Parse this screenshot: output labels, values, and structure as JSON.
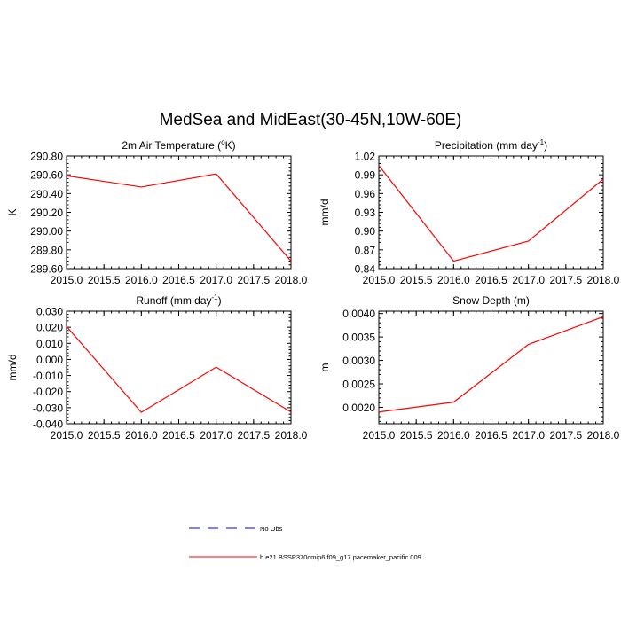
{
  "figure_title": "MedSea and MidEast(30-45N,10W-60E)",
  "line_color": "#ff0000",
  "obs_color": "#0000ff",
  "legend": [
    {
      "label": "No Obs",
      "style": "dashed",
      "color": "#0000ff"
    },
    {
      "label": "b.e21.BSSP370cmip6.f09_g17.pacemaker_pacific.009",
      "style": "solid",
      "color": "#ff0000"
    }
  ],
  "chart_data": [
    {
      "type": "line",
      "title": "2m Air Temperature (",
      "title_sup": "o",
      "title_tail": "K)",
      "ylabel": "K",
      "xlim": [
        2015.0,
        2018.0
      ],
      "ylim": [
        289.6,
        290.8
      ],
      "x_ticks": [
        "2015.0",
        "2015.5",
        "2016.0",
        "2016.5",
        "2017.0",
        "2017.5",
        "2018.0"
      ],
      "y_ticks": [
        "289.60",
        "289.80",
        "290.00",
        "290.20",
        "290.40",
        "290.60",
        "290.80"
      ],
      "x": [
        2015.0,
        2016.0,
        2017.0,
        2018.0
      ],
      "series": [
        {
          "values": [
            290.59,
            290.47,
            290.61,
            289.68
          ]
        }
      ]
    },
    {
      "type": "line",
      "title": "Precipitation (mm day",
      "title_sup": "-1",
      "title_tail": ")",
      "ylabel": "mm/d",
      "xlim": [
        2015.0,
        2018.0
      ],
      "ylim": [
        0.84,
        1.02
      ],
      "x_ticks": [
        "2015.0",
        "2015.5",
        "2016.0",
        "2016.5",
        "2017.0",
        "2017.5",
        "2018.0"
      ],
      "y_ticks": [
        "0.84",
        "0.87",
        "0.90",
        "0.93",
        "0.96",
        "0.99",
        "1.02"
      ],
      "x": [
        2015.0,
        2016.0,
        2017.0,
        2018.0
      ],
      "series": [
        {
          "values": [
            1.005,
            0.852,
            0.884,
            0.983
          ]
        }
      ]
    },
    {
      "type": "line",
      "title": "Runoff (mm day",
      "title_sup": "-1",
      "title_tail": ")",
      "ylabel": "mm/d",
      "xlim": [
        2015.0,
        2018.0
      ],
      "ylim": [
        -0.04,
        0.03
      ],
      "x_ticks": [
        "2015.0",
        "2015.5",
        "2016.0",
        "2016.5",
        "2017.0",
        "2017.5",
        "2018.0"
      ],
      "y_ticks": [
        "-0.040",
        "-0.030",
        "-0.020",
        "-0.010",
        "0.000",
        "0.010",
        "0.020",
        "0.030"
      ],
      "x": [
        2015.0,
        2016.0,
        2017.0,
        2018.0
      ],
      "series": [
        {
          "values": [
            0.0205,
            -0.0329,
            -0.0048,
            -0.0327
          ]
        }
      ]
    },
    {
      "type": "line",
      "title": "Snow Depth (m)",
      "title_sup": "",
      "title_tail": "",
      "ylabel": "m",
      "xlim": [
        2015.0,
        2018.0
      ],
      "ylim": [
        0.00165,
        0.00405
      ],
      "x_ticks": [
        "2015.0",
        "2015.5",
        "2016.0",
        "2016.5",
        "2017.0",
        "2017.5",
        "2018.0"
      ],
      "y_ticks": [
        "0.0020",
        "0.0025",
        "0.0030",
        "0.0035",
        "0.0040"
      ],
      "x": [
        2015.0,
        2016.0,
        2017.0,
        2018.0
      ],
      "series": [
        {
          "values": [
            0.0019,
            0.00211,
            0.00334,
            0.00393
          ]
        }
      ]
    }
  ]
}
